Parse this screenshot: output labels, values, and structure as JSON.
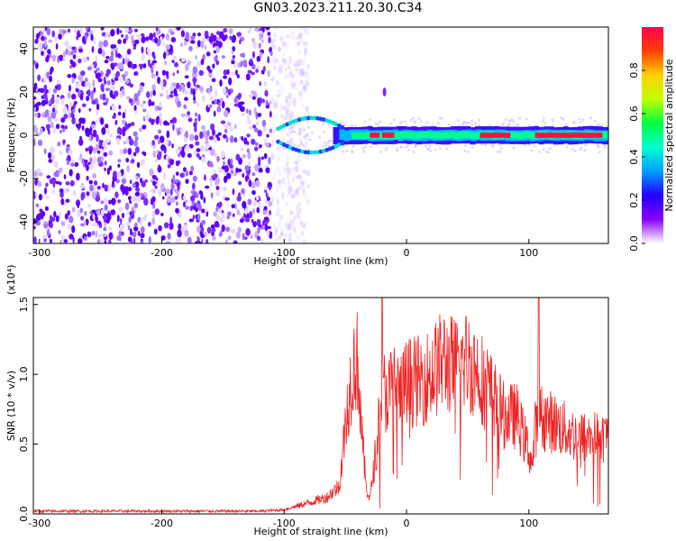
{
  "title": "GN03.2023.211.20.30.C34",
  "colors": {
    "line": "#ee2222",
    "colorbar_stops": [
      "#ffffff",
      "#8a00ff",
      "#2200ff",
      "#00a0ff",
      "#00ffd0",
      "#00ff40",
      "#c0ff00",
      "#ffd000",
      "#ff4000",
      "#ff0055"
    ]
  },
  "chart_data": [
    {
      "type": "heatmap",
      "xlabel": "Height of straight line (km)",
      "ylabel": "Frequency (Hz)",
      "xlim": [
        -305,
        165
      ],
      "ylim": [
        -50,
        50
      ],
      "x_ticks": [
        -300,
        -200,
        -100,
        0,
        100
      ],
      "y_ticks": [
        -40,
        -20,
        0,
        20,
        40
      ],
      "colorbar": {
        "label": "Normalized spectral amplitude",
        "range": [
          0,
          1
        ],
        "ticks": [
          "0.0",
          "0.2",
          "0.4",
          "0.6",
          "0.8"
        ]
      },
      "features": {
        "noise_region_x": [
          -305,
          -95
        ],
        "signal_band_center_hz": 0,
        "signal_start_x": -105,
        "strong_signal_x": [
          -60,
          165
        ]
      }
    },
    {
      "type": "line",
      "xlabel": "Height of straight line (km)",
      "ylabel": "SNR (10 * v/v)",
      "scale_label": "(x10⁴)",
      "xlim": [
        -305,
        165
      ],
      "ylim": [
        0,
        1.55
      ],
      "x_ticks": [
        -300,
        -200,
        -100,
        0,
        100
      ],
      "y_ticks": [
        "0.0",
        "0.5",
        "1.0",
        "1.5"
      ],
      "series": [
        {
          "x": [
            -305,
            -200,
            -120,
            -100,
            -80,
            -65,
            -55,
            -48,
            -44,
            -40,
            -36,
            -33,
            -30,
            -25,
            -20,
            -15,
            -10,
            -5,
            0,
            10,
            20,
            30,
            40,
            50,
            60,
            70,
            80,
            90,
            100,
            103,
            105,
            110,
            120,
            130,
            140,
            150,
            165
          ],
          "values": [
            0.02,
            0.02,
            0.02,
            0.03,
            0.08,
            0.12,
            0.2,
            0.8,
            1.05,
            1.1,
            0.5,
            0.2,
            0.1,
            0.45,
            0.9,
            0.85,
            0.95,
            0.85,
            0.95,
            0.95,
            1.0,
            1.1,
            1.05,
            1.1,
            1.0,
            0.85,
            0.7,
            0.7,
            0.45,
            0.35,
            0.6,
            0.7,
            0.65,
            0.6,
            0.55,
            0.55,
            0.55
          ]
        }
      ]
    }
  ]
}
